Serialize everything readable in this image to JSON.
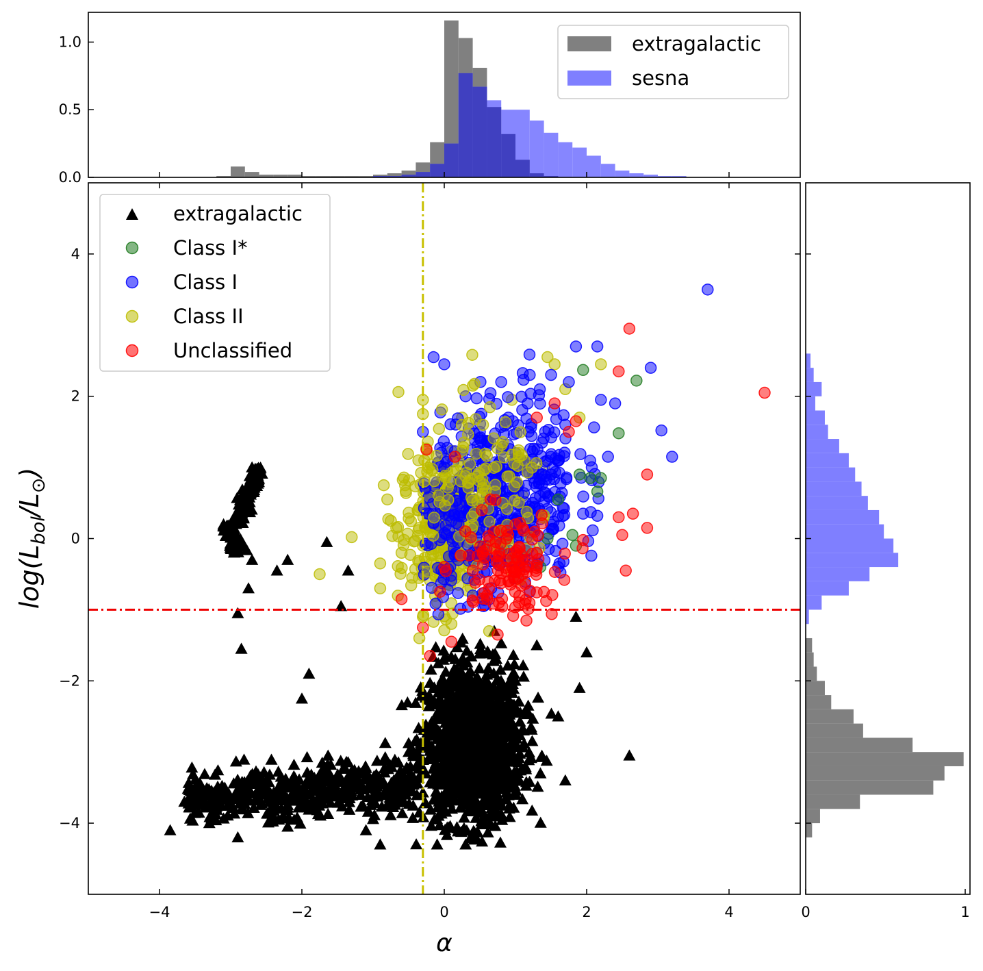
{
  "chart_data": [
    {
      "panel": "main",
      "type": "scatter",
      "xlabel": "α",
      "ylabel": "log(L_bol/L_⊙)",
      "xlim": [
        -5,
        5
      ],
      "ylim": [
        -5,
        5
      ],
      "xticks": [
        -4,
        -2,
        0,
        2,
        4
      ],
      "xtick_labels": [
        "−4",
        "−2",
        "0",
        "2",
        "4"
      ],
      "yticks": [
        -4,
        -2,
        0,
        2,
        4
      ],
      "ytick_labels": [
        "−4",
        "−2",
        "0",
        "2",
        "4"
      ],
      "grid": false,
      "legend_position": "upper-left",
      "reference_lines": [
        {
          "orientation": "vertical",
          "value": -0.3,
          "color": "#c8c000",
          "style": "dash-dot"
        },
        {
          "orientation": "horizontal",
          "value": -1.0,
          "color": "#ee0000",
          "style": "dash-dot"
        }
      ],
      "series": [
        {
          "name": "extragalactic",
          "marker": "triangle",
          "color": "#000000",
          "clusters": [
            {
              "kind": "arc",
              "x_range": [
                -3.1,
                -2.6
              ],
              "y_range": [
                -0.3,
                1.0
              ]
            },
            {
              "kind": "dense-core",
              "x_range": [
                -0.6,
                1.6
              ],
              "y_range": [
                -4.3,
                -1.1
              ]
            },
            {
              "kind": "tail",
              "x_range": [
                -3.9,
                -0.6
              ],
              "y_range": [
                -4.2,
                -2.9
              ]
            }
          ],
          "sample": [
            [
              -2.6,
              0.95
            ],
            [
              -2.7,
              1.0
            ],
            [
              -2.95,
              0.3
            ],
            [
              -3.1,
              0.2
            ],
            [
              -2.7,
              -0.3
            ],
            [
              -1.65,
              -0.05
            ],
            [
              -2.2,
              -0.3
            ],
            [
              -2.35,
              -0.45
            ],
            [
              -1.35,
              -0.45
            ],
            [
              -2.75,
              -0.7
            ],
            [
              -2.9,
              -1.05
            ],
            [
              -2.85,
              -1.55
            ],
            [
              -1.45,
              -0.95
            ],
            [
              -1.9,
              -1.9
            ],
            [
              -2.0,
              -2.25
            ],
            [
              -3.85,
              -4.1
            ],
            [
              -3.65,
              -3.7
            ],
            [
              -3.3,
              -4.0
            ],
            [
              -2.9,
              -4.2
            ],
            [
              -2.5,
              -3.5
            ],
            [
              -2.2,
              -4.05
            ],
            [
              -1.8,
              -3.8
            ],
            [
              -1.4,
              -3.6
            ],
            [
              -1.1,
              -4.1
            ],
            [
              -0.9,
              -4.3
            ],
            [
              -0.5,
              -3.0
            ],
            [
              0.2,
              -2.5
            ],
            [
              0.5,
              -3.5
            ],
            [
              1.0,
              -2.0
            ],
            [
              1.3,
              -1.5
            ],
            [
              1.6,
              -2.5
            ],
            [
              1.85,
              -1.1
            ],
            [
              2.0,
              -1.6
            ],
            [
              1.9,
              -2.1
            ],
            [
              1.7,
              -3.4
            ],
            [
              2.6,
              -3.05
            ],
            [
              0.3,
              -4.3
            ],
            [
              -0.1,
              -4.3
            ]
          ]
        },
        {
          "name": "Class I*",
          "marker": "circle",
          "color": "#1f7a1f",
          "sample": [
            [
              1.95,
              2.37
            ],
            [
              2.7,
              2.22
            ],
            [
              2.45,
              1.48
            ],
            [
              1.9,
              0.9
            ],
            [
              2.05,
              0.85
            ],
            [
              2.15,
              0.66
            ],
            [
              1.8,
              0.05
            ],
            [
              1.85,
              -0.1
            ],
            [
              1.35,
              -0.4
            ],
            [
              2.2,
              0.85
            ],
            [
              1.6,
              0.55
            ],
            [
              1.45,
              0.0
            ]
          ]
        },
        {
          "name": "Class I",
          "marker": "circle",
          "color": "#0000ff",
          "x_range": [
            -0.3,
            3.7
          ],
          "y_range": [
            -1.1,
            3.5
          ],
          "sample": [
            [
              3.7,
              3.5
            ],
            [
              -0.15,
              2.55
            ],
            [
              0.0,
              2.45
            ],
            [
              2.15,
              2.7
            ],
            [
              1.85,
              2.7
            ],
            [
              2.9,
              2.4
            ],
            [
              3.05,
              1.52
            ],
            [
              3.2,
              1.15
            ],
            [
              2.4,
              1.9
            ],
            [
              2.2,
              1.95
            ],
            [
              2.3,
              1.15
            ],
            [
              2.15,
              0.32
            ],
            [
              1.95,
              0.35
            ],
            [
              -0.3,
              1.5
            ],
            [
              0.8,
              2.2
            ],
            [
              1.2,
              2.3
            ],
            [
              1.5,
              2.3
            ],
            [
              1.75,
              2.2
            ],
            [
              0.3,
              2.0
            ],
            [
              0.5,
              1.5
            ],
            [
              1.0,
              1.2
            ],
            [
              1.5,
              0.9
            ],
            [
              0.0,
              1.0
            ],
            [
              0.6,
              0.6
            ],
            [
              1.2,
              0.4
            ],
            [
              0.2,
              0.2
            ],
            [
              0.8,
              -0.2
            ],
            [
              1.6,
              -0.4
            ],
            [
              0.4,
              -0.8
            ],
            [
              1.2,
              -0.75
            ],
            [
              0.9,
              1.7
            ],
            [
              1.7,
              1.6
            ],
            [
              0.1,
              0.7
            ],
            [
              0.55,
              -0.95
            ]
          ]
        },
        {
          "name": "Class II",
          "marker": "circle",
          "color": "#bcbc00",
          "x_range": [
            -1.0,
            2.2
          ],
          "y_range": [
            -1.45,
            2.55
          ],
          "sample": [
            [
              1.45,
              2.55
            ],
            [
              1.55,
              2.45
            ],
            [
              2.2,
              2.45
            ],
            [
              1.7,
              2.1
            ],
            [
              -0.3,
              1.95
            ],
            [
              -0.3,
              1.75
            ],
            [
              0.25,
              1.7
            ],
            [
              0.95,
              1.95
            ],
            [
              1.9,
              1.7
            ],
            [
              -0.85,
              0.75
            ],
            [
              -0.55,
              0.75
            ],
            [
              -0.8,
              0.55
            ],
            [
              -0.75,
              0.25
            ],
            [
              -1.3,
              0.02
            ],
            [
              -0.9,
              -0.35
            ],
            [
              -1.75,
              -0.5
            ],
            [
              -0.9,
              -0.7
            ],
            [
              -0.45,
              -0.55
            ],
            [
              -0.6,
              -0.2
            ],
            [
              -0.3,
              -0.1
            ],
            [
              -0.3,
              -1.1
            ],
            [
              -0.35,
              -1.4
            ],
            [
              -0.1,
              -0.9
            ],
            [
              0.1,
              -1.2
            ],
            [
              0.3,
              0.4
            ],
            [
              0.0,
              0.0
            ],
            [
              0.2,
              -0.4
            ],
            [
              0.5,
              1.2
            ],
            [
              0.8,
              0.9
            ],
            [
              1.1,
              0.6
            ],
            [
              1.4,
              1.0
            ],
            [
              0.4,
              -0.2
            ],
            [
              -0.1,
              0.6
            ],
            [
              0.6,
              0.3
            ]
          ]
        },
        {
          "name": "Unclassified",
          "marker": "circle",
          "color": "#ff0000",
          "x_range": [
            -0.6,
            4.5
          ],
          "y_range": [
            -1.65,
            2.95
          ],
          "sample": [
            [
              2.6,
              2.95
            ],
            [
              4.5,
              2.05
            ],
            [
              2.45,
              2.35
            ],
            [
              2.85,
              0.9
            ],
            [
              2.45,
              0.3
            ],
            [
              2.65,
              0.35
            ],
            [
              2.5,
              0.05
            ],
            [
              2.85,
              0.15
            ],
            [
              2.55,
              -0.45
            ],
            [
              1.95,
              -0.02
            ],
            [
              1.55,
              1.9
            ],
            [
              1.85,
              1.65
            ],
            [
              1.75,
              1.5
            ],
            [
              1.3,
              1.7
            ],
            [
              -0.25,
              1.25
            ],
            [
              0.15,
              1.15
            ],
            [
              0.65,
              0.55
            ],
            [
              0.7,
              0.1
            ],
            [
              1.0,
              0.2
            ],
            [
              1.3,
              -0.2
            ],
            [
              0.9,
              -0.6
            ],
            [
              0.4,
              -0.45
            ],
            [
              1.1,
              -0.5
            ],
            [
              1.4,
              -0.75
            ],
            [
              0.0,
              -0.4
            ],
            [
              -0.6,
              -0.85
            ],
            [
              -0.3,
              -1.25
            ],
            [
              0.1,
              -1.45
            ],
            [
              0.75,
              -1.35
            ],
            [
              -0.2,
              -1.65
            ],
            [
              1.05,
              -0.9
            ],
            [
              0.6,
              -0.8
            ]
          ]
        }
      ]
    },
    {
      "panel": "top-histogram",
      "type": "bar",
      "description_x": "α",
      "xlim": [
        -5,
        5
      ],
      "ylim": [
        0.0,
        1.22
      ],
      "yticks": [
        0.0,
        0.5,
        1.0
      ],
      "ytick_labels": [
        "0.0",
        "0.5",
        "1.0"
      ],
      "legend_position": "upper-right",
      "bin_width": 0.2,
      "series": [
        {
          "name": "extragalactic",
          "color": "#808080",
          "bin_starts": [
            -3.2,
            -3.0,
            -2.8,
            -2.6,
            -2.4,
            -2.2,
            -2.0,
            -1.8,
            -1.6,
            -1.4,
            -1.2,
            -1.0,
            -0.8,
            -0.6,
            -0.4,
            -0.2,
            0.0,
            0.2,
            0.4,
            0.6,
            0.8,
            1.0,
            1.2,
            1.4
          ],
          "values": [
            0.01,
            0.08,
            0.04,
            0.02,
            0.02,
            0.02,
            0.01,
            0.01,
            0.01,
            0.01,
            0.01,
            0.02,
            0.03,
            0.05,
            0.11,
            0.26,
            1.16,
            1.03,
            0.81,
            0.52,
            0.32,
            0.13,
            0.03,
            0.01
          ]
        },
        {
          "name": "sesna",
          "color": "#7f7fff",
          "bin_starts": [
            -1.0,
            -0.8,
            -0.6,
            -0.4,
            -0.2,
            0.0,
            0.2,
            0.4,
            0.6,
            0.8,
            1.0,
            1.2,
            1.4,
            1.6,
            1.8,
            2.0,
            2.2,
            2.4,
            2.6,
            2.8,
            3.0,
            3.2
          ],
          "values": [
            0.01,
            0.01,
            0.02,
            0.04,
            0.1,
            0.25,
            0.77,
            0.67,
            0.57,
            0.5,
            0.5,
            0.42,
            0.33,
            0.26,
            0.22,
            0.16,
            0.1,
            0.05,
            0.03,
            0.02,
            0.01,
            0.01
          ]
        }
      ]
    },
    {
      "panel": "right-histogram",
      "type": "bar",
      "orientation": "horizontal",
      "description_y": "log(L_bol/L_⊙)",
      "ylim": [
        -5,
        5
      ],
      "xlim": [
        0,
        1.03
      ],
      "xticks": [
        0,
        1
      ],
      "xtick_labels": [
        "0",
        "1"
      ],
      "bin_width": 0.2,
      "series": [
        {
          "name": "sesna",
          "color": "#7f7fff",
          "bin_starts": [
            2.4,
            2.2,
            2.0,
            1.8,
            1.6,
            1.4,
            1.2,
            1.0,
            0.8,
            0.6,
            0.4,
            0.2,
            0.0,
            -0.2,
            -0.4,
            -0.6,
            -0.8,
            -1.0,
            -1.2
          ],
          "values": [
            0.03,
            0.05,
            0.1,
            0.06,
            0.12,
            0.14,
            0.21,
            0.27,
            0.31,
            0.35,
            0.39,
            0.46,
            0.49,
            0.55,
            0.58,
            0.4,
            0.27,
            0.1,
            0.02
          ]
        },
        {
          "name": "extragalactic",
          "color": "#808080",
          "bin_starts": [
            -1.6,
            -1.8,
            -2.0,
            -2.2,
            -2.4,
            -2.6,
            -2.8,
            -3.0,
            -3.2,
            -3.4,
            -3.6,
            -3.8,
            -4.0,
            -4.2
          ],
          "values": [
            0.04,
            0.05,
            0.07,
            0.12,
            0.16,
            0.3,
            0.36,
            0.67,
            0.99,
            0.87,
            0.8,
            0.34,
            0.09,
            0.04
          ]
        }
      ]
    }
  ],
  "legends": {
    "top": [
      "extragalactic",
      "sesna"
    ],
    "main": [
      "extragalactic",
      "Class I*",
      "Class I",
      "Class II",
      "Unclassified"
    ]
  }
}
